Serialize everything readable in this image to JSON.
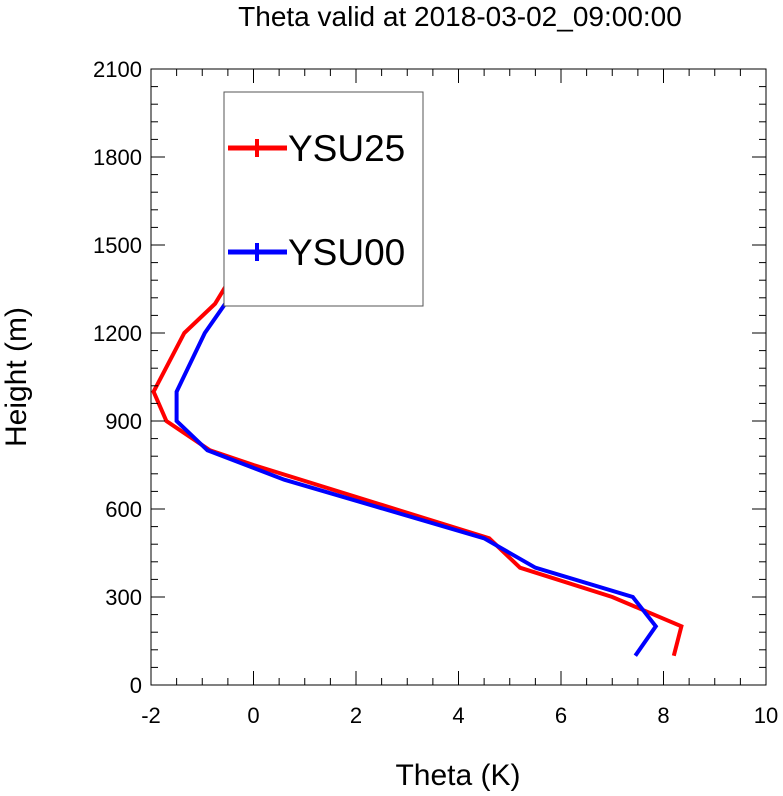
{
  "chart_data": {
    "type": "line",
    "title": "Theta valid at 2018-03-02_09:00:00",
    "xlabel": "Theta (K)",
    "ylabel": "Height (m)",
    "xlim": [
      -2,
      10
    ],
    "ylim": [
      0,
      2100
    ],
    "xticks": [
      "-2",
      "0",
      "2",
      "4",
      "6",
      "8",
      "10"
    ],
    "yticks": [
      "0",
      "300",
      "600",
      "900",
      "1200",
      "1500",
      "1800",
      "2100"
    ],
    "grid": false,
    "legend_position": "top-left",
    "series": [
      {
        "name": "YSU25",
        "color": "#ff0000",
        "x": [
          8.2,
          8.35,
          7.0,
          5.2,
          4.6,
          0.0,
          -0.85,
          -1.7,
          -1.95,
          -1.35,
          -0.75,
          -0.4,
          -0.15,
          -0.05,
          0.0
        ],
        "y": [
          100,
          200,
          300,
          400,
          500,
          750,
          800,
          900,
          1000,
          1200,
          1300,
          1400,
          1600,
          1800,
          2000
        ]
      },
      {
        "name": "YSU00",
        "color": "#0000ff",
        "x": [
          7.45,
          7.85,
          7.4,
          5.5,
          4.5,
          0.6,
          -0.9,
          -1.5,
          -1.5,
          -0.95,
          -0.55,
          -0.3,
          -0.1,
          0.0,
          0.0
        ],
        "y": [
          100,
          200,
          300,
          400,
          500,
          700,
          800,
          900,
          1000,
          1200,
          1300,
          1400,
          1600,
          1800,
          2000
        ]
      }
    ]
  }
}
